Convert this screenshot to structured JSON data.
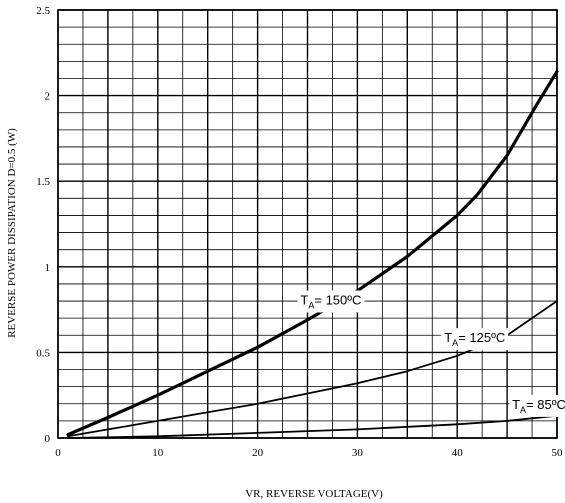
{
  "chart_data": {
    "type": "line",
    "xlabel": "VR, REVERSE VOLTAGE(V)",
    "ylabel": "REVERSE POWER DISSIPATION D=0.5 (W)",
    "xlim": [
      0,
      50
    ],
    "ylim": [
      0,
      2.5
    ],
    "x_ticks": [
      "0",
      "10",
      "20",
      "30",
      "40",
      "50"
    ],
    "y_ticks": [
      "0",
      "0.5",
      "1",
      "1.5",
      "2",
      "2.5"
    ],
    "grid": true,
    "series": [
      {
        "name_main": "T",
        "name_sub": "A",
        "name_rest": "= 150ºC",
        "x": [
          1,
          5,
          10,
          15,
          20,
          25,
          30,
          35,
          40,
          42,
          45,
          48,
          50
        ],
        "y": [
          0.02,
          0.12,
          0.25,
          0.39,
          0.53,
          0.69,
          0.86,
          1.06,
          1.3,
          1.42,
          1.65,
          1.95,
          2.14
        ],
        "stroke_width": 3.2
      },
      {
        "name_main": "T",
        "name_sub": "A",
        "name_rest": "= 125ºC",
        "x": [
          1,
          5,
          10,
          15,
          20,
          25,
          30,
          35,
          40,
          45,
          50
        ],
        "y": [
          0.01,
          0.05,
          0.1,
          0.15,
          0.2,
          0.26,
          0.32,
          0.39,
          0.48,
          0.6,
          0.8
        ],
        "stroke_width": 1.8
      },
      {
        "name_main": "T",
        "name_sub": "A",
        "name_rest": "= 85ºC",
        "x": [
          1,
          10,
          20,
          30,
          40,
          45,
          50
        ],
        "y": [
          0.0,
          0.01,
          0.03,
          0.05,
          0.08,
          0.1,
          0.13
        ],
        "stroke_width": 1.8
      }
    ]
  }
}
